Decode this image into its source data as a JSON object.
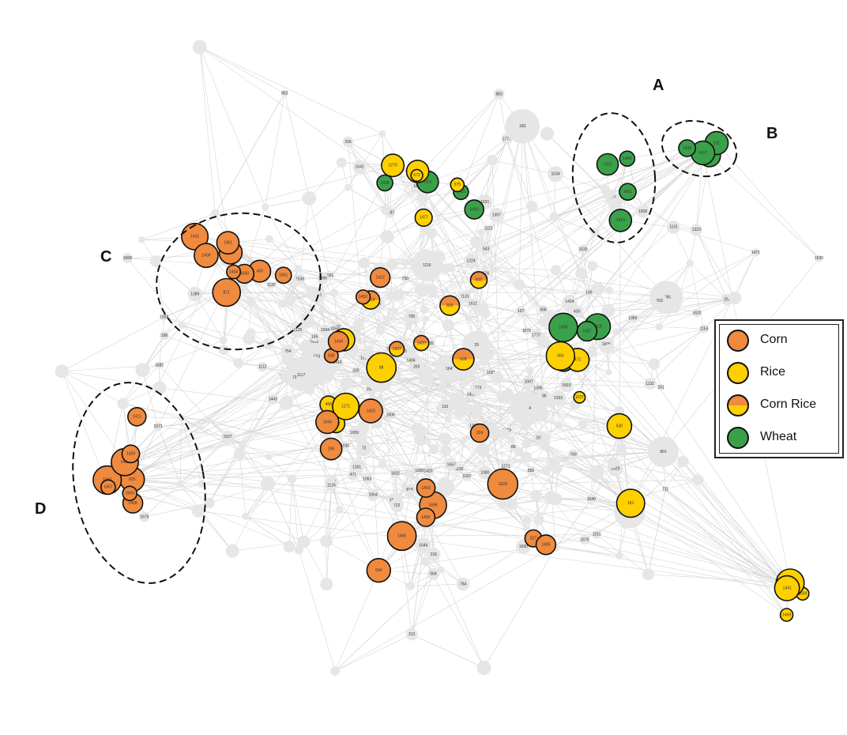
{
  "cluster_labels": [
    "A",
    "B",
    "C",
    "D"
  ],
  "legend": {
    "items": [
      {
        "label": "Corn",
        "color": "#f08a3e"
      },
      {
        "label": "Rice",
        "color": "#ffd000"
      },
      {
        "label": "Corn  Rice",
        "colors": [
          "#f08a3e",
          "#ffd000"
        ]
      },
      {
        "label": "Wheat",
        "color": "#3aa14a"
      }
    ]
  },
  "colors": {
    "corn": "#f08a3e",
    "rice": "#ffd000",
    "wheat": "#3aa14a",
    "other": "#e6e6e6",
    "edge": "#d6d6d6"
  },
  "nodes": {
    "labeled": [
      "430",
      "1063",
      "1064",
      "1125",
      "795",
      "860",
      "1117",
      "1070",
      "72",
      "721",
      "563",
      "564",
      "1118",
      "1261",
      "137",
      "339",
      "29",
      "205",
      "1132",
      "1281",
      "1170",
      "1037",
      "730",
      "711",
      "707",
      "1035",
      "960",
      "952",
      "1036",
      "543",
      "1034",
      "1121",
      "1150",
      "1192",
      "1131",
      "1224",
      "1080",
      "1031",
      "553",
      "1342",
      "442",
      "89",
      "86",
      "47",
      "1487",
      "1630",
      "1777",
      "1772",
      "1632",
      "1631",
      "1394",
      "1395",
      "1776",
      "1629",
      "1424",
      "1425",
      "1008",
      "1004",
      "1005",
      "1006",
      "1007",
      "1061",
      "399",
      "1641",
      "1642",
      "1675",
      "1664",
      "1674",
      "1670",
      "1603",
      "1694",
      "1690",
      "1682",
      "1691",
      "1669",
      "1657",
      "1676",
      "1646",
      "1659",
      "265",
      "1443",
      "1439",
      "1533",
      "1421",
      "1420",
      "1571",
      "1416",
      "1611",
      "1599",
      "1675",
      "1389",
      "722",
      "1365",
      "1669",
      "1620",
      "1602",
      "1640",
      "1397",
      "1471",
      "1744",
      "1527",
      "1600",
      "1690",
      "1673",
      "1404",
      "1331",
      "1333",
      "1492",
      "1466",
      "1536",
      "1369",
      "1369",
      "389",
      "146",
      "320",
      "568",
      "883",
      "769",
      "261",
      "149",
      "312",
      "313",
      "818",
      "471",
      "253",
      "173",
      "754",
      "784",
      "556",
      "1271",
      "1323",
      "801",
      "975",
      "1151",
      "1153",
      "1172",
      "1149",
      "183",
      "216",
      "256",
      "116",
      "198",
      "275",
      "763",
      "1030",
      "1058",
      "1059",
      "1065",
      "1066",
      "1068",
      "1112",
      "1113",
      "1114",
      "1115",
      "1116",
      "1119",
      "1120",
      "1122",
      "1123",
      "1124"
    ],
    "corn": [
      "400",
      "825",
      "299",
      "827",
      "871",
      "1408",
      "500",
      "564",
      "1431",
      "1663",
      "1644",
      "1696",
      "1690",
      "1432",
      "1434",
      "1455",
      "1661",
      "1669",
      "1422",
      "1629",
      "1409",
      "1457",
      "1433",
      "1465",
      "1426",
      "1429",
      "324",
      "1405",
      "1404",
      "1411",
      "1452",
      "1403",
      "1401"
    ],
    "rice": [
      "90",
      "88",
      "1037",
      "1039",
      "575",
      "571",
      "472",
      "1429",
      "1270",
      "1042",
      "450",
      "1441",
      "672",
      "468",
      "530",
      "1469",
      "1477",
      "1271",
      "181"
    ],
    "cornrice": [
      "1420",
      "555",
      "628",
      "1419",
      "1407",
      "810"
    ],
    "wheat": [
      "1413",
      "1414",
      "1416",
      "1418",
      "1412",
      "911",
      "1410",
      "1315",
      "1409",
      "1417",
      "1421",
      "1437",
      "1421",
      "1428",
      "1438",
      "1439"
    ]
  }
}
